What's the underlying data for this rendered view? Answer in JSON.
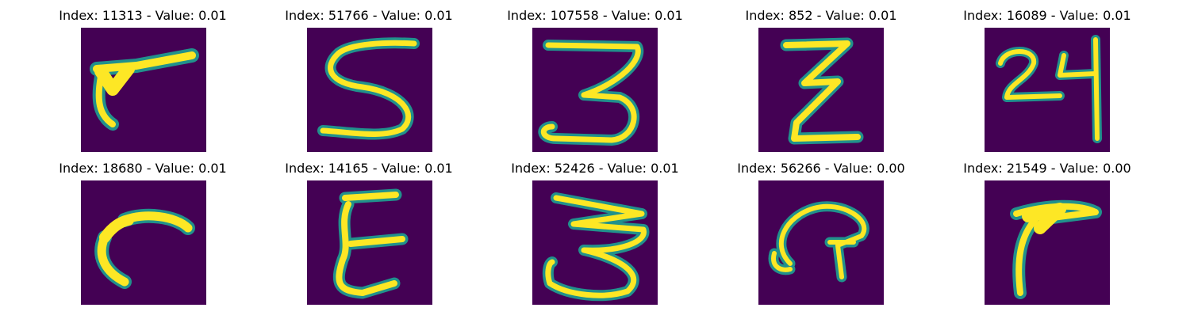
{
  "colormap": {
    "background": "#440154",
    "edge": "#21918c",
    "mid": "#5ec962",
    "peak": "#fde725"
  },
  "panels": [
    {
      "title": "Index: 11313 - Value: 0.01",
      "glyph": "stroke-slash"
    },
    {
      "title": "Index: 51766 - Value: 0.01",
      "glyph": "letter-S"
    },
    {
      "title": "Index: 107558 - Value: 0.01",
      "glyph": "digit-3"
    },
    {
      "title": "Index: 852 - Value: 0.01",
      "glyph": "letter-Z"
    },
    {
      "title": "Index: 16089 - Value: 0.01",
      "glyph": "digits-24"
    },
    {
      "title": "Index: 18680 - Value: 0.01",
      "glyph": "letter-r"
    },
    {
      "title": "Index: 14165 - Value: 0.01",
      "glyph": "letter-E"
    },
    {
      "title": "Index: 52426 - Value: 0.01",
      "glyph": "digit-3"
    },
    {
      "title": "Index: 56266 - Value: 0.00",
      "glyph": "letter-a"
    },
    {
      "title": "Index: 21549 - Value: 0.00",
      "glyph": "stroke-hook"
    }
  ]
}
